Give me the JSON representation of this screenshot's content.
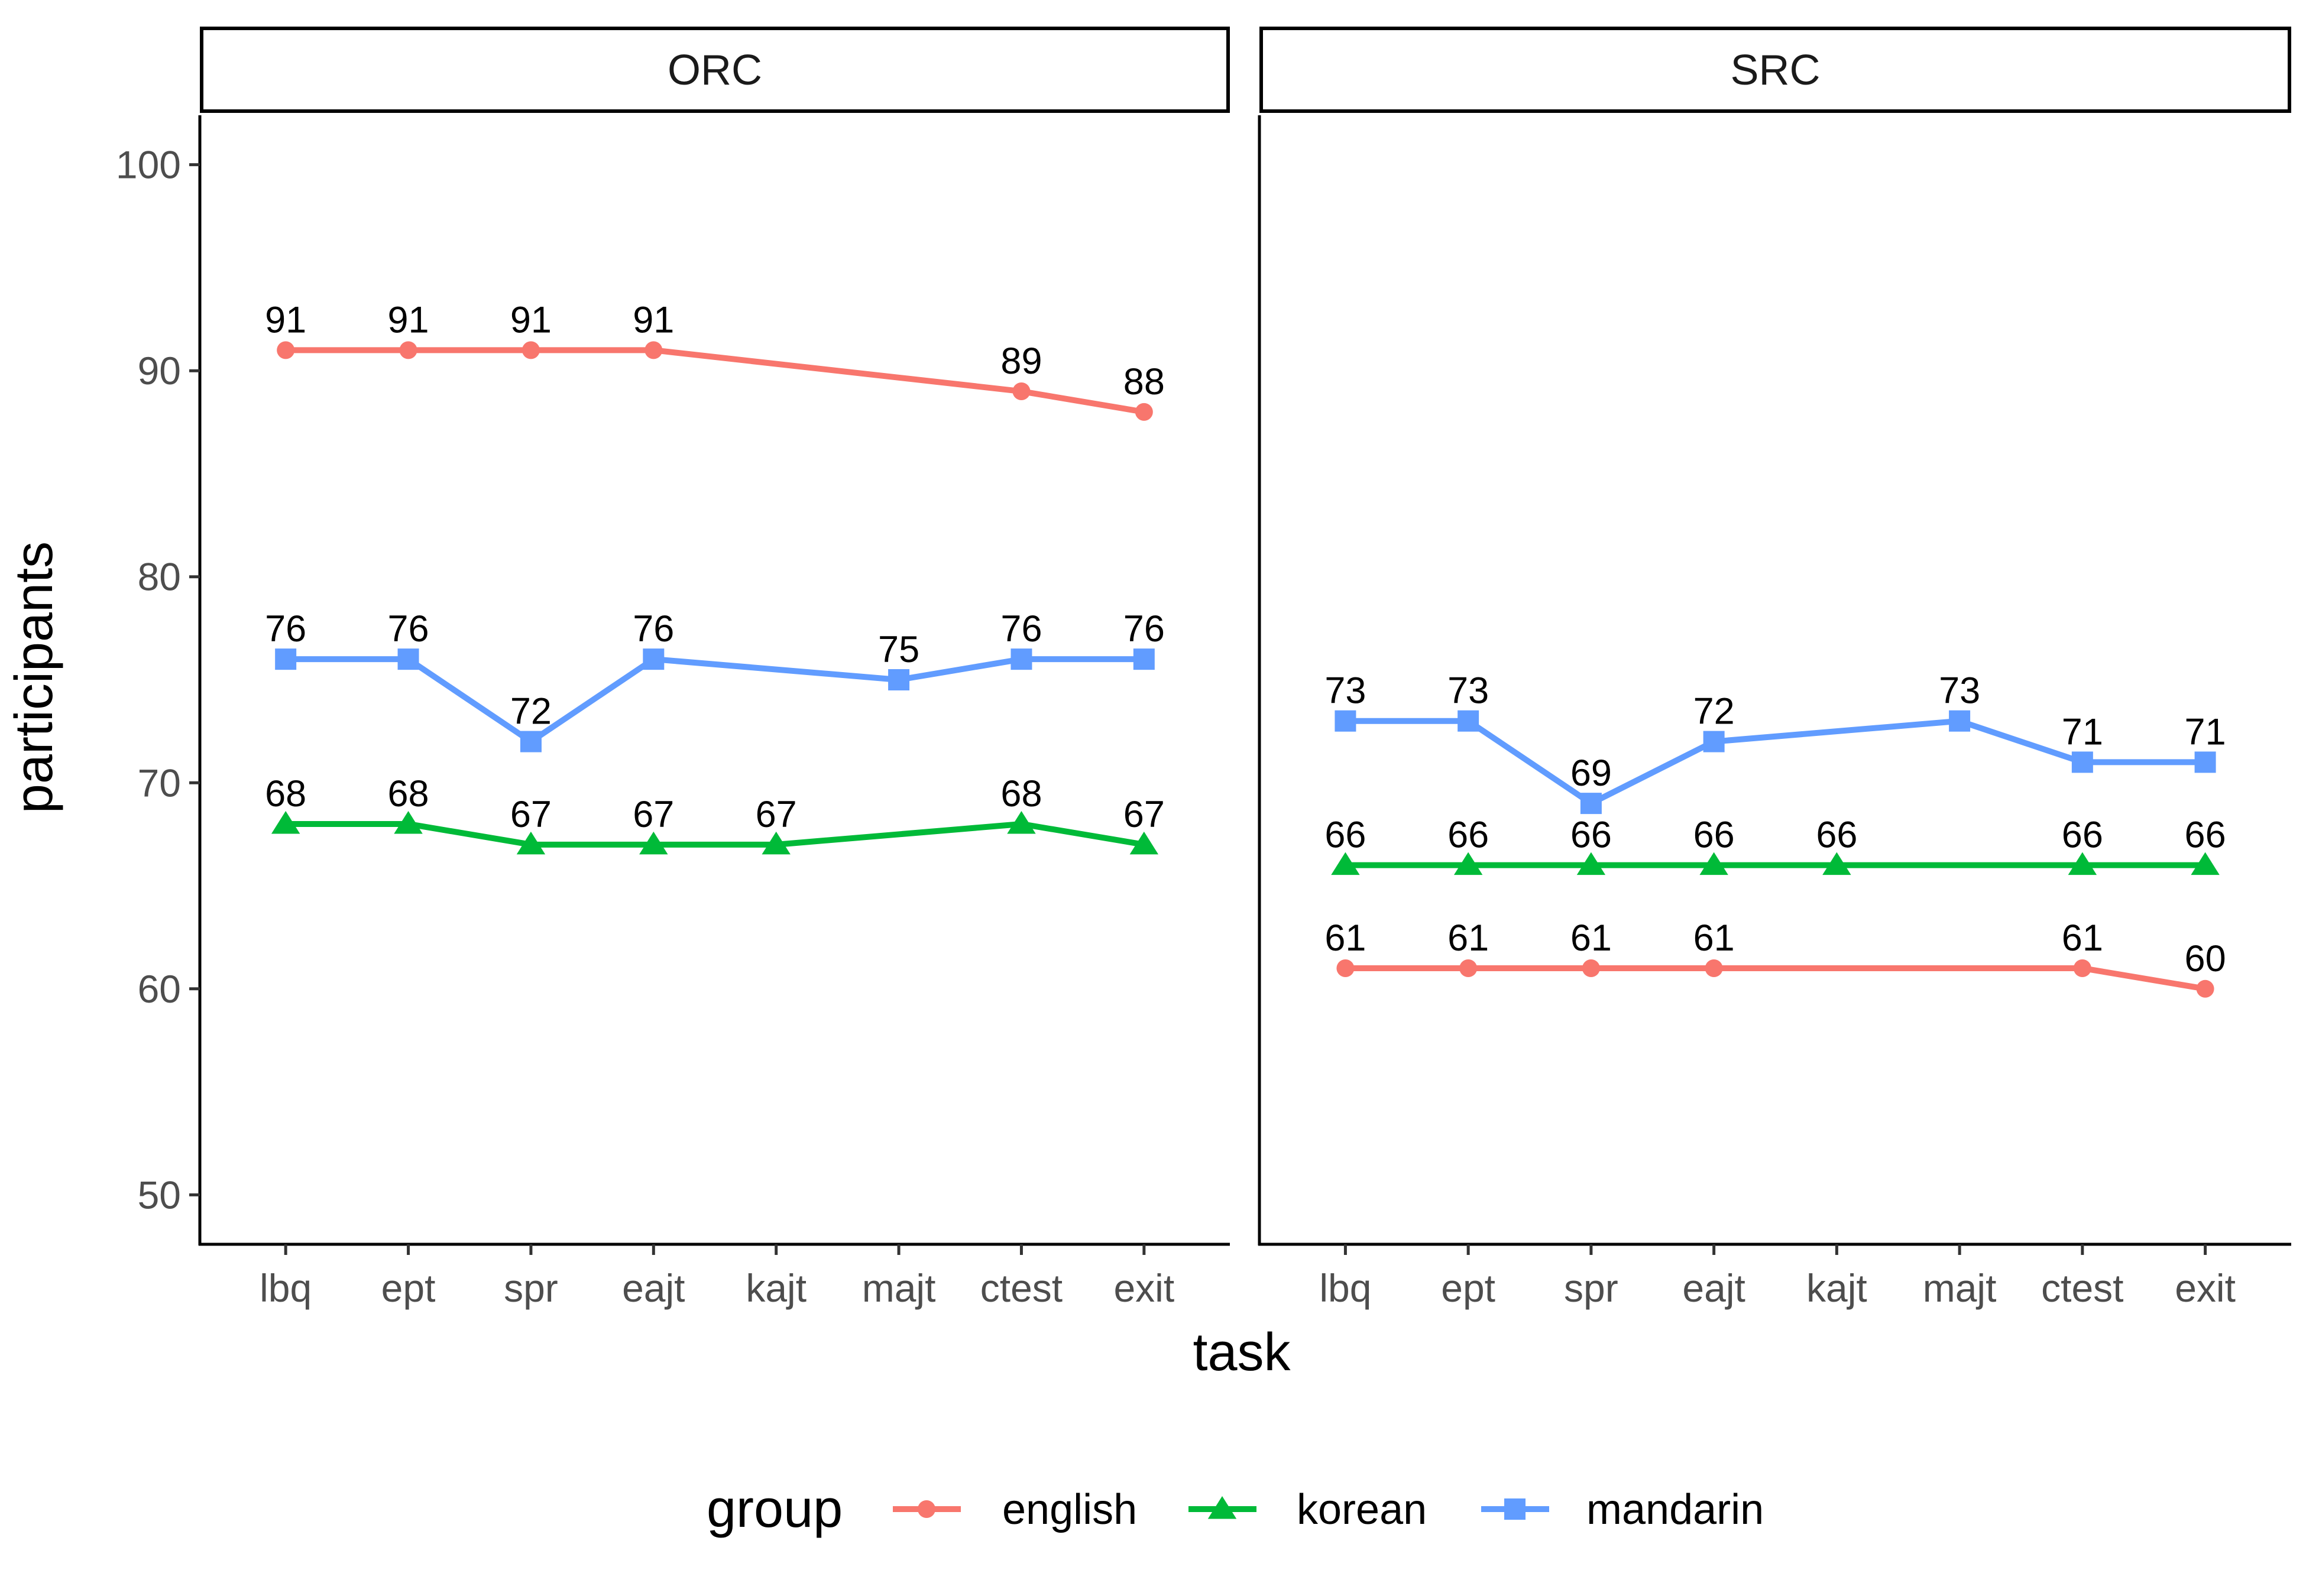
{
  "chart_data": {
    "type": "line",
    "xlabel": "task",
    "ylabel": "participants",
    "ylim": [
      47.6,
      102.4
    ],
    "yticks": [
      50,
      60,
      70,
      80,
      90,
      100
    ],
    "categories": [
      "lbq",
      "ept",
      "spr",
      "eajt",
      "kajt",
      "majt",
      "ctest",
      "exit"
    ],
    "grid": false,
    "legend": {
      "title": "group",
      "position": "bottom",
      "entries": [
        "english",
        "korean",
        "mandarin"
      ]
    },
    "colors": {
      "english": "#F8766D",
      "korean": "#00BA38",
      "mandarin": "#619CFF"
    },
    "markers": {
      "english": "circle",
      "korean": "triangle",
      "mandarin": "square"
    },
    "panels": [
      {
        "title": "ORC",
        "series": [
          {
            "name": "english",
            "values": [
              91,
              91,
              91,
              91,
              null,
              null,
              89,
              88
            ]
          },
          {
            "name": "korean",
            "values": [
              68,
              68,
              67,
              67,
              67,
              null,
              68,
              67
            ]
          },
          {
            "name": "mandarin",
            "values": [
              76,
              76,
              72,
              76,
              null,
              75,
              76,
              76
            ]
          }
        ]
      },
      {
        "title": "SRC",
        "series": [
          {
            "name": "english",
            "values": [
              61,
              61,
              61,
              61,
              null,
              null,
              61,
              60
            ]
          },
          {
            "name": "korean",
            "values": [
              66,
              66,
              66,
              66,
              66,
              null,
              66,
              66
            ]
          },
          {
            "name": "mandarin",
            "values": [
              73,
              73,
              69,
              72,
              null,
              73,
              71,
              71
            ]
          }
        ]
      }
    ]
  }
}
